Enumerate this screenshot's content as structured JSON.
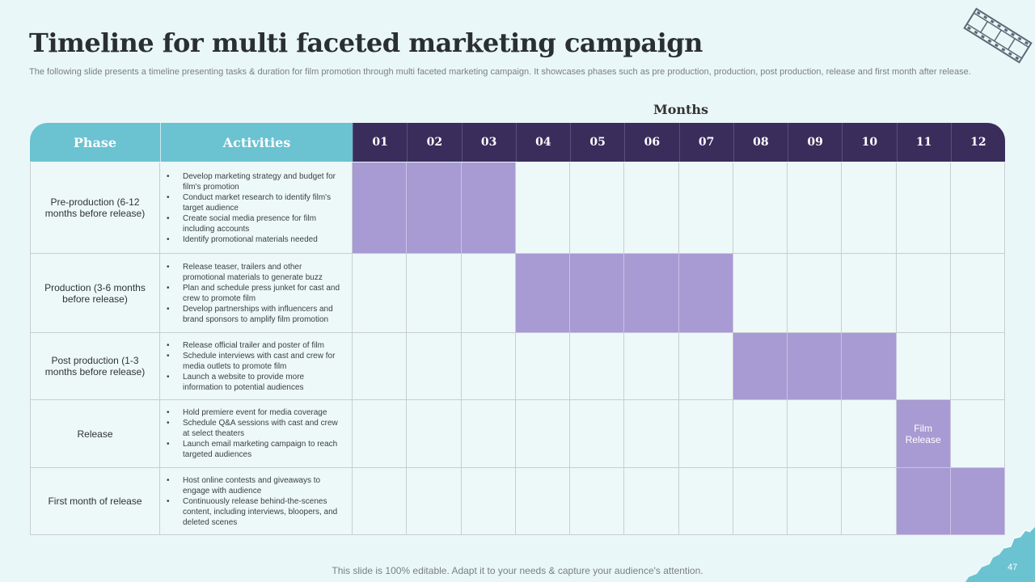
{
  "title": "Timeline for multi faceted marketing campaign",
  "subtitle": "The following slide presents a timeline presenting tasks & duration for film promotion through multi faceted marketing campaign. It showcases phases such as pre production, production, post production, release and first month after release.",
  "months_label": "Months",
  "headers": {
    "phase": "Phase",
    "activities": "Activities"
  },
  "months": [
    "01",
    "02",
    "03",
    "04",
    "05",
    "06",
    "07",
    "08",
    "09",
    "10",
    "11",
    "12"
  ],
  "rows": [
    {
      "phase": "Pre-production (6-12 months before release)",
      "activities": [
        "Develop marketing strategy and budget for film's promotion",
        "Conduct market research to identify film's target audience",
        "Create social media presence for film including accounts",
        "Identify promotional materials needed"
      ],
      "active_months": [
        1,
        2,
        3
      ]
    },
    {
      "phase": "Production (3-6 months before release)",
      "activities": [
        "Release teaser, trailers and other promotional materials to generate buzz",
        "Plan and schedule press junket for cast and crew to promote film",
        "Develop partnerships with influencers and brand sponsors to amplify film promotion"
      ],
      "active_months": [
        4,
        5,
        6,
        7
      ]
    },
    {
      "phase": "Post production (1-3 months before release)",
      "activities": [
        "Release official trailer and poster of film",
        "Schedule interviews with cast and crew for media outlets to promote film",
        "Launch a website to provide more information to potential audiences"
      ],
      "active_months": [
        8,
        9,
        10
      ]
    },
    {
      "phase": "Release",
      "activities": [
        "Hold premiere event for media coverage",
        "Schedule Q&A sessions with cast and crew at select theaters",
        "Launch email marketing campaign to reach targeted audiences"
      ],
      "active_months": [
        11
      ],
      "milestone_label": "Film Release"
    },
    {
      "phase": "First month of release",
      "activities": [
        "Host online contests and giveaways to engage with audience",
        "Continuously release behind-the-scenes content, including interviews, bloopers, and deleted scenes"
      ],
      "active_months": [
        11,
        12
      ]
    }
  ],
  "footer": "This slide is 100% editable. Adapt it to your needs & capture your audience's attention.",
  "page_number": "47",
  "colors": {
    "header_teal": "#6bc2d1",
    "header_purple": "#3a2d5c",
    "active_bar": "#a89ad2",
    "background": "#eaf7f8"
  },
  "icons": [
    "film-strip-icon",
    "corner-paper-decoration"
  ]
}
